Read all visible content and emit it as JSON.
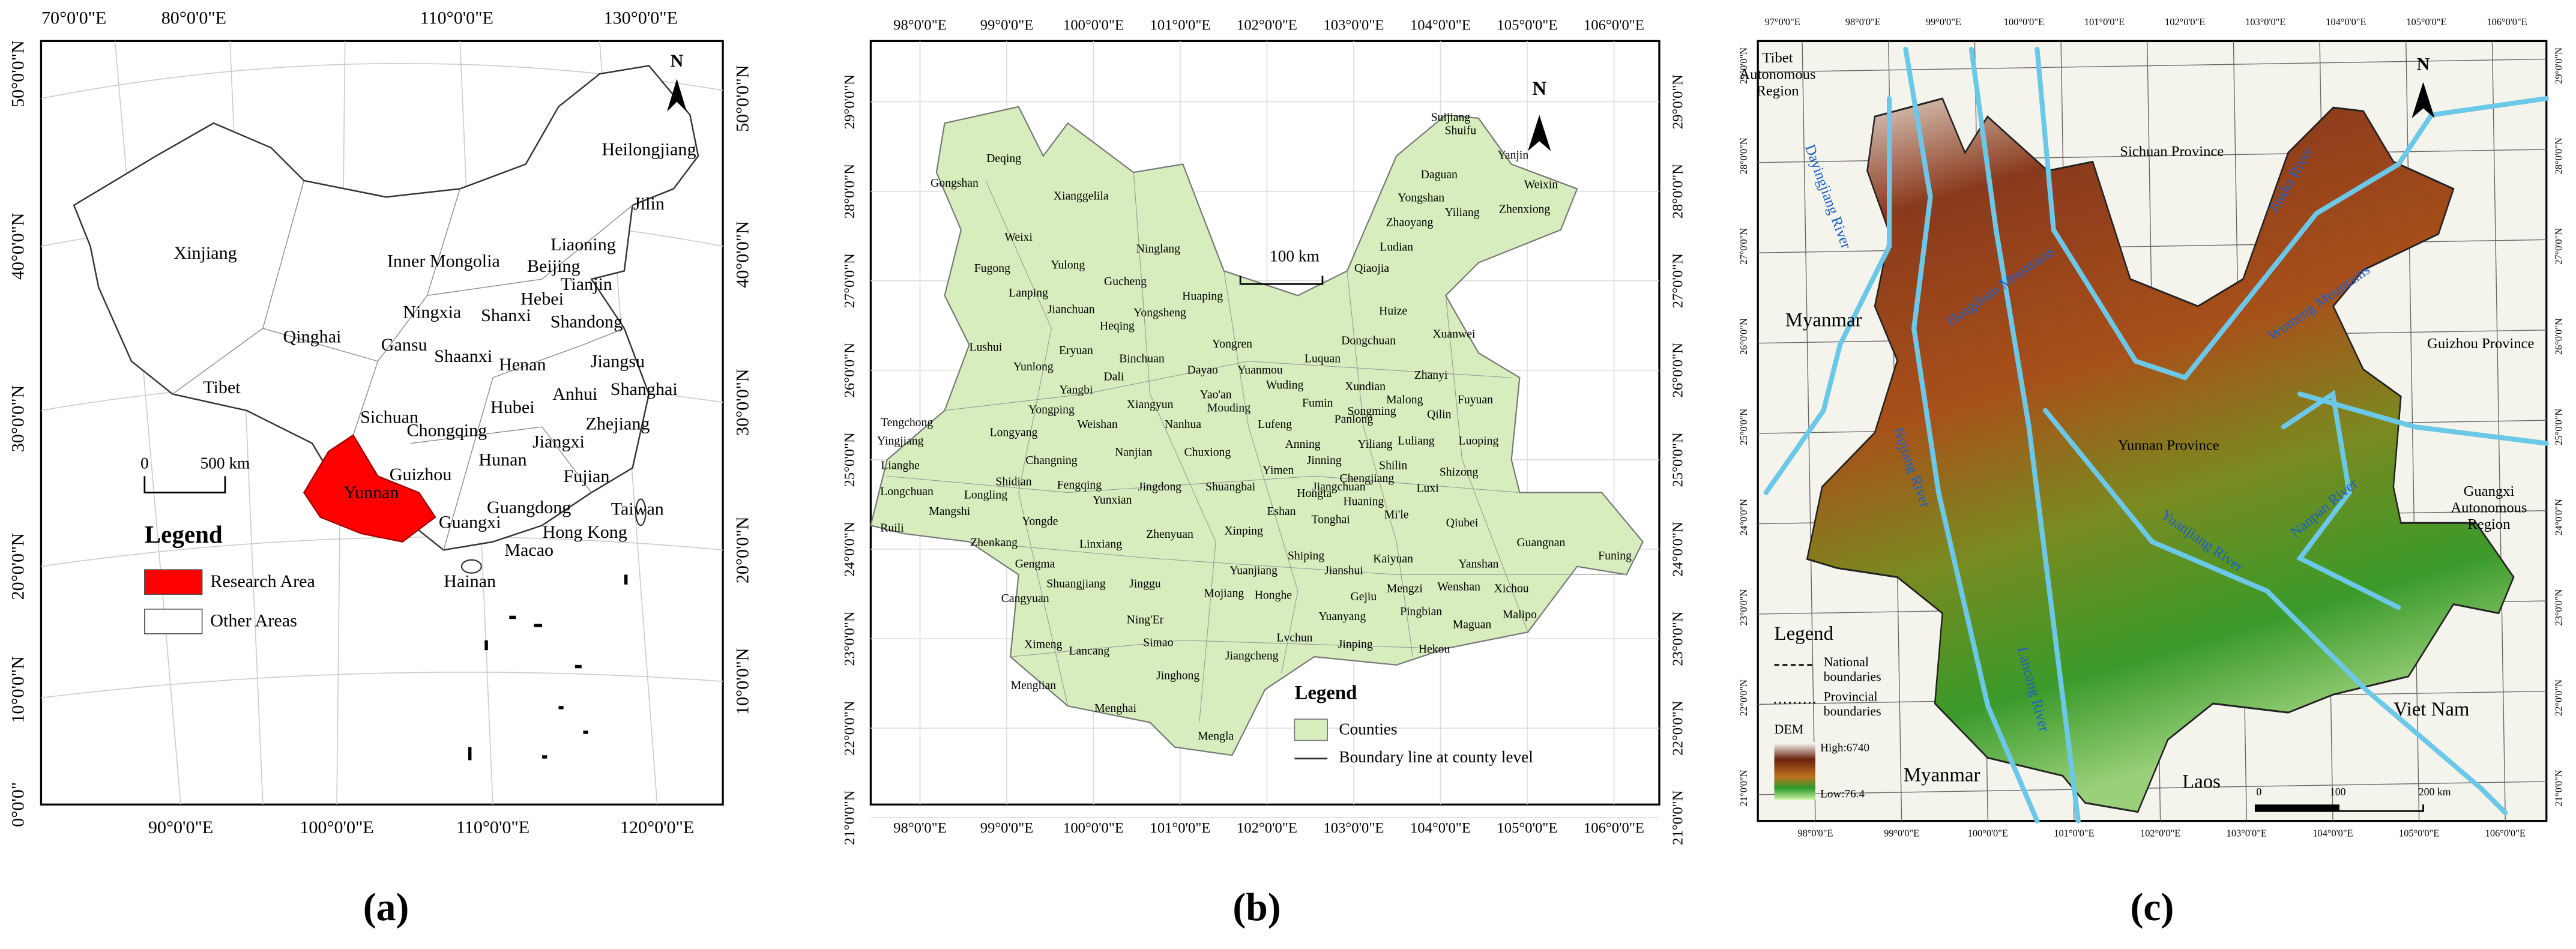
{
  "panel_a": {
    "lon_top": [
      "70°0'0\"E",
      "80°0'0\"E",
      "110°0'0\"E",
      "130°0'0\"E"
    ],
    "lon_bottom": [
      "90°0'0\"E",
      "100°0'0\"E",
      "110°0'0\"E",
      "120°0'0\"E"
    ],
    "lat_left": [
      "50°0'0\"N",
      "40°0'0\"N",
      "30°0'0\"N",
      "20°0'0\"N",
      "10°0'0\"N",
      "0°0'0\""
    ],
    "lat_right": [
      "50°0'0\"N",
      "40°0'0\"N",
      "30°0'0\"N",
      "20°0'0\"N",
      "10°0'0\"N"
    ],
    "places": [
      "Heilongjiang",
      "Jilin",
      "Xinjiang",
      "Liaoning",
      "Inner Mongolia",
      "Beijing",
      "Tianjin",
      "Hebei",
      "Ningxia",
      "Shanxi",
      "Shandong",
      "Qinghai",
      "Gansu",
      "Shaanxi",
      "Henan",
      "Jiangsu",
      "Tibet",
      "Anhui",
      "Shanghai",
      "Hubei",
      "Sichuan",
      "Chongqing",
      "Zhejiang",
      "Jiangxi",
      "Hunan",
      "Guizhou",
      "Fujian",
      "Yunnan",
      "Taiwan",
      "Guangxi",
      "Guangdong",
      "Hong Kong",
      "Macao",
      "Hainan"
    ],
    "north": "N",
    "scale": [
      "0",
      "500 km"
    ],
    "legend_title": "Legend",
    "legend_items": [
      "Research Area",
      "Other Areas"
    ],
    "label": "(a)"
  },
  "panel_b": {
    "lon_top": [
      "98°0'0\"E",
      "99°0'0\"E",
      "100°0'0\"E",
      "101°0'0\"E",
      "102°0'0\"E",
      "103°0'0\"E",
      "104°0'0\"E",
      "105°0'0\"E",
      "106°0'0\"E"
    ],
    "lon_bottom": [
      "98°0'0\"E",
      "99°0'0\"E",
      "100°0'0\"E",
      "101°0'0\"E",
      "102°0'0\"E",
      "103°0'0\"E",
      "104°0'0\"E",
      "105°0'0\"E",
      "106°0'0\"E"
    ],
    "lat_left": [
      "29°0'0\"N",
      "28°0'0\"N",
      "27°0'0\"N",
      "26°0'0\"N",
      "25°0'0\"N",
      "24°0'0\"N",
      "23°0'0\"N",
      "22°0'0\"N",
      "21°0'0\"N"
    ],
    "lat_right": [
      "29°0'0\"N",
      "28°0'0\"N",
      "27°0'0\"N",
      "26°0'0\"N",
      "25°0'0\"N",
      "24°0'0\"N",
      "23°0'0\"N",
      "22°0'0\"N",
      "21°0'0\"N"
    ],
    "counties": [
      "Suijiang",
      "Shuifu",
      "Yanjin",
      "Daguan",
      "Deqing",
      "Weixin",
      "Gongshan",
      "Yongshan",
      "Zhenxiong",
      "Yiliang",
      "Zhaoyang",
      "Xianggelila",
      "Ludian",
      "Weixi",
      "Ninglang",
      "Qiaojia",
      "Yulong",
      "Gucheng",
      "Fugong",
      "Huize",
      "Lanping",
      "Huaping",
      "Jianchuan",
      "Yongsheng",
      "Heqing",
      "Dongchuan",
      "Xuanwei",
      "Lushui",
      "Eryuan",
      "Yongren",
      "Binchuan",
      "Luquan",
      "Yunlong",
      "Dayao",
      "Yuanmou",
      "Zhanyi",
      "Dali",
      "Yangbi",
      "Wuding",
      "Xundian",
      "Malong",
      "Fuyuan",
      "Yao'an",
      "Xiangyun",
      "Fumin",
      "Mouding",
      "Qilin",
      "Yongping",
      "Songming",
      "Tengchong",
      "Weishan",
      "Nanhua",
      "Lufeng",
      "Panlong",
      "Yiliang",
      "Luliang",
      "Luoping",
      "Yingjiang",
      "Longyang",
      "Anning",
      "Changning",
      "Nanjian",
      "Chuxiong",
      "Jinning",
      "Lianghe",
      "Shilin",
      "Yimen",
      "Chengjiang",
      "Shizong",
      "Longchuan",
      "Shidian",
      "Fengqing",
      "Jingdong",
      "Shuangbai",
      "Jiangchuan",
      "Luxi",
      "Longling",
      "Hongta",
      "Yunxian",
      "Huaning",
      "Mangshi",
      "Eshan",
      "Mi'le",
      "Tonghai",
      "Yongde",
      "Qiubei",
      "Ruili",
      "Xinping",
      "Zhenyuan",
      "Zhenkang",
      "Linxiang",
      "Guangnan",
      "Funing",
      "Shiping",
      "Kaiyuan",
      "Gengma",
      "Yanshan",
      "Yuanjiang",
      "Jianshui",
      "Shuangjiang",
      "Jinggu",
      "Mengzi",
      "Wenshan",
      "Xichou",
      "Mojiang",
      "Honghe",
      "Gejiu",
      "Cangyuan",
      "Pingbian",
      "Malipo",
      "Yuanyang",
      "Ning'Er",
      "Maguan",
      "Lvchun",
      "Simao",
      "Jinping",
      "Ximeng",
      "Lancang",
      "Hekou",
      "Jiangcheng",
      "Jinghong",
      "Menglian",
      "Menghai",
      "Mengla"
    ],
    "north": "N",
    "scale": "100 km",
    "legend_title": "Legend",
    "legend_items": [
      "Counties",
      "Boundary line at county level"
    ],
    "label": "(b)"
  },
  "panel_c": {
    "lon_top": [
      "97°0'0\"E",
      "98°0'0\"E",
      "99°0'0\"E",
      "100°0'0\"E",
      "101°0'0\"E",
      "102°0'0\"E",
      "103°0'0\"E",
      "104°0'0\"E",
      "105°0'0\"E",
      "106°0'0\"E"
    ],
    "lon_bottom": [
      "98°0'0\"E",
      "99°0'0\"E",
      "100°0'0\"E",
      "101°0'0\"E",
      "102°0'0\"E",
      "103°0'0\"E",
      "104°0'0\"E",
      "105°0'0\"E",
      "106°0'0\"E"
    ],
    "lat_left": [
      "29°0'0\"N",
      "28°0'0\"N",
      "27°0'0\"N",
      "26°0'0\"N",
      "25°0'0\"N",
      "24°0'0\"N",
      "23°0'0\"N",
      "22°0'0\"N",
      "21°0'0\"N"
    ],
    "lat_right": [
      "29°0'0\"N",
      "28°0'0\"N",
      "27°0'0\"N",
      "26°0'0\"N",
      "25°0'0\"N",
      "24°0'0\"N",
      "23°0'0\"N",
      "22°0'0\"N",
      "21°0'0\"N"
    ],
    "places": [
      "Tibet",
      "Autonomous",
      "Region",
      "Sichuan Province",
      "Myanmar",
      "Guizhou Province",
      "Yunnan Province",
      "Guangxi",
      "Autonomous",
      "Region",
      "Viet Nam",
      "Myanmar",
      "Laos"
    ],
    "features": [
      "Jinsha River",
      "Dayingjiang River",
      "Hengduan Mountains",
      "Wumeng Mountains",
      "Nujiang River",
      "Nanpan River",
      "Yuanjiang River",
      "Lancang River"
    ],
    "legend": [
      "Legend",
      "National",
      "boundaries",
      "Provincial",
      "boundaries",
      "DEM",
      "High:6740",
      "Low:76.4"
    ],
    "north": "N",
    "scale": [
      "0",
      "100",
      "200 km"
    ],
    "label": "(c)"
  }
}
